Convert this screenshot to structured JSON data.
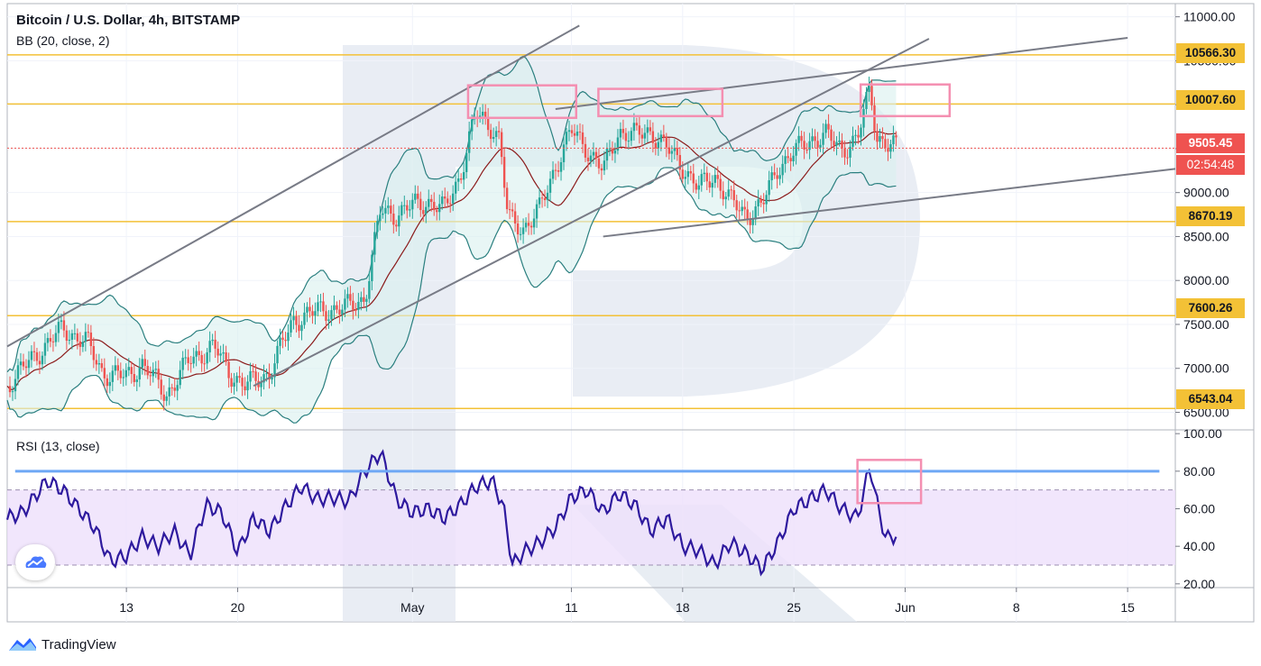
{
  "header": {
    "title": "Bitcoin / U.S. Dollar, 4h, BITSTAMP",
    "indicator": "BB (20, close, 2)",
    "rsi_indicator": "RSI (13, close)"
  },
  "brand": {
    "name": "TradingView"
  },
  "colors": {
    "level_line": "#f3c136",
    "channel_line": "#787b86",
    "bb_band": "#2a7f7f",
    "bb_basis": "#8b1a1a",
    "candle_up": "#26a69a",
    "candle_down": "#ef5350",
    "highlight_box": "#f48fb1",
    "rsi_line": "#2e1a9e",
    "rsi_band": "#ede0fb",
    "rsi_resistance": "#6ea8f5",
    "watermark": "#dfe6ef"
  },
  "chart_data": [
    {
      "type": "candlestick",
      "title": "Bitcoin / U.S. Dollar, 4h, BITSTAMP",
      "price_axis_ticks": [
        "11000.00",
        "10500.00",
        "10000.00",
        "9500.00",
        "9000.00",
        "8500.00",
        "8000.00",
        "7500.00",
        "7000.00",
        "6500.00"
      ],
      "ylim": [
        6300,
        11150
      ],
      "x_ticks": [
        "13",
        "20",
        "May",
        "11",
        "18",
        "25",
        "Jun",
        "8",
        "15"
      ],
      "x_tick_days": [
        13,
        20,
        31,
        41,
        48,
        55,
        62,
        69,
        76
      ],
      "x_day_range": [
        5.5,
        79
      ],
      "levels": [
        {
          "label": "10566.30",
          "value": 10566.3
        },
        {
          "label": "10007.60",
          "value": 10007.6
        },
        {
          "label": "8670.19",
          "value": 8670.19
        },
        {
          "label": "7600.26",
          "value": 7600.26
        },
        {
          "label": "6543.04",
          "value": 6543.04
        }
      ],
      "last_price": {
        "label": "9505.45",
        "value": 9505.45,
        "countdown": "02:54:48"
      },
      "close_path": [
        [
          5.5,
          6800
        ],
        [
          7,
          7100
        ],
        [
          9,
          7450
        ],
        [
          10.5,
          7300
        ],
        [
          11.5,
          6950
        ],
        [
          13,
          6900
        ],
        [
          14,
          7050
        ],
        [
          15.5,
          6700
        ],
        [
          17,
          7100
        ],
        [
          18.5,
          7250
        ],
        [
          19.5,
          6950
        ],
        [
          20.5,
          6800
        ],
        [
          22,
          6950
        ],
        [
          23.5,
          7550
        ],
        [
          25,
          7650
        ],
        [
          27,
          7700
        ],
        [
          28,
          7800
        ],
        [
          29,
          8800
        ],
        [
          30,
          8750
        ],
        [
          31,
          8850
        ],
        [
          32,
          8900
        ],
        [
          33,
          8800
        ],
        [
          34,
          9200
        ],
        [
          35,
          9900
        ],
        [
          36,
          9750
        ],
        [
          36.5,
          9600
        ],
        [
          37,
          8700
        ],
        [
          38,
          8600
        ],
        [
          39,
          8800
        ],
        [
          40,
          9300
        ],
        [
          41,
          9700
        ],
        [
          42,
          9500
        ],
        [
          43,
          9250
        ],
        [
          44,
          9700
        ],
        [
          45,
          9650
        ],
        [
          46,
          9700
        ],
        [
          47,
          9500
        ],
        [
          48,
          9300
        ],
        [
          49,
          9050
        ],
        [
          50,
          9200
        ],
        [
          51,
          8900
        ],
        [
          52,
          8750
        ],
        [
          53,
          8850
        ],
        [
          54,
          9300
        ],
        [
          55,
          9450
        ],
        [
          56,
          9600
        ],
        [
          57,
          9650
        ],
        [
          58,
          9500
        ],
        [
          59,
          9600
        ],
        [
          59.8,
          10200
        ],
        [
          60.2,
          9650
        ],
        [
          61,
          9520
        ],
        [
          61.5,
          9505
        ]
      ],
      "channels": [
        {
          "name": "upper-channel",
          "from": [
            5.5,
            7250
          ],
          "to": [
            41.5,
            10900
          ]
        },
        {
          "name": "middle-channel",
          "from": [
            21,
            6800
          ],
          "to": [
            63.5,
            10750
          ]
        },
        {
          "name": "top-trendline",
          "from": [
            40,
            9950
          ],
          "to": [
            76,
            10760
          ]
        },
        {
          "name": "lower-trendline",
          "from": [
            43,
            8500
          ],
          "to": [
            79,
            9270
          ]
        }
      ],
      "highlight_zones": [
        {
          "name": "resistance-box-1",
          "day_from": 34.5,
          "day_to": 41.3,
          "price_from": 9850,
          "price_to": 10220
        },
        {
          "name": "resistance-box-2",
          "day_from": 42.7,
          "day_to": 50.5,
          "price_from": 9870,
          "price_to": 10180
        },
        {
          "name": "resistance-box-3",
          "day_from": 59.2,
          "day_to": 64.8,
          "price_from": 9870,
          "price_to": 10230
        }
      ]
    },
    {
      "type": "line",
      "title": "RSI (13, close)",
      "ticks": [
        "100.00",
        "80.00",
        "60.00",
        "40.00",
        "20.00"
      ],
      "ylim": [
        18,
        102
      ],
      "band": [
        30,
        70
      ],
      "resistance": {
        "from_day": 6,
        "to_day": 78,
        "value": 80
      },
      "highlight_zone": {
        "day_from": 59,
        "day_to": 63,
        "value_from": 63,
        "value_to": 86
      },
      "values": [
        [
          5.5,
          55
        ],
        [
          6.5,
          58
        ],
        [
          8,
          75
        ],
        [
          9,
          70
        ],
        [
          10,
          60
        ],
        [
          11,
          50
        ],
        [
          12,
          32
        ],
        [
          13,
          35
        ],
        [
          14,
          45
        ],
        [
          15,
          40
        ],
        [
          16,
          48
        ],
        [
          17,
          35
        ],
        [
          18,
          62
        ],
        [
          19,
          58
        ],
        [
          20,
          37
        ],
        [
          21,
          55
        ],
        [
          22,
          48
        ],
        [
          23,
          61
        ],
        [
          24,
          72
        ],
        [
          25,
          65
        ],
        [
          26,
          66
        ],
        [
          27,
          64
        ],
        [
          28,
          80
        ],
        [
          29,
          90
        ],
        [
          30,
          65
        ],
        [
          31,
          58
        ],
        [
          32,
          60
        ],
        [
          33,
          55
        ],
        [
          34,
          62
        ],
        [
          35,
          72
        ],
        [
          36,
          75
        ],
        [
          36.7,
          62
        ],
        [
          37.3,
          30
        ],
        [
          38,
          37
        ],
        [
          39,
          42
        ],
        [
          40,
          50
        ],
        [
          41,
          66
        ],
        [
          42,
          70
        ],
        [
          43,
          58
        ],
        [
          44,
          68
        ],
        [
          45,
          62
        ],
        [
          46,
          48
        ],
        [
          47,
          55
        ],
        [
          48,
          40
        ],
        [
          49,
          38
        ],
        [
          50,
          30
        ],
        [
          51,
          42
        ],
        [
          52,
          36
        ],
        [
          53,
          28
        ],
        [
          54,
          42
        ],
        [
          55,
          60
        ],
        [
          56,
          65
        ],
        [
          57,
          70
        ],
        [
          58,
          60
        ],
        [
          59,
          55
        ],
        [
          59.8,
          83
        ],
        [
          60.3,
          60
        ],
        [
          60.8,
          44
        ],
        [
          61.5,
          46
        ]
      ]
    }
  ]
}
